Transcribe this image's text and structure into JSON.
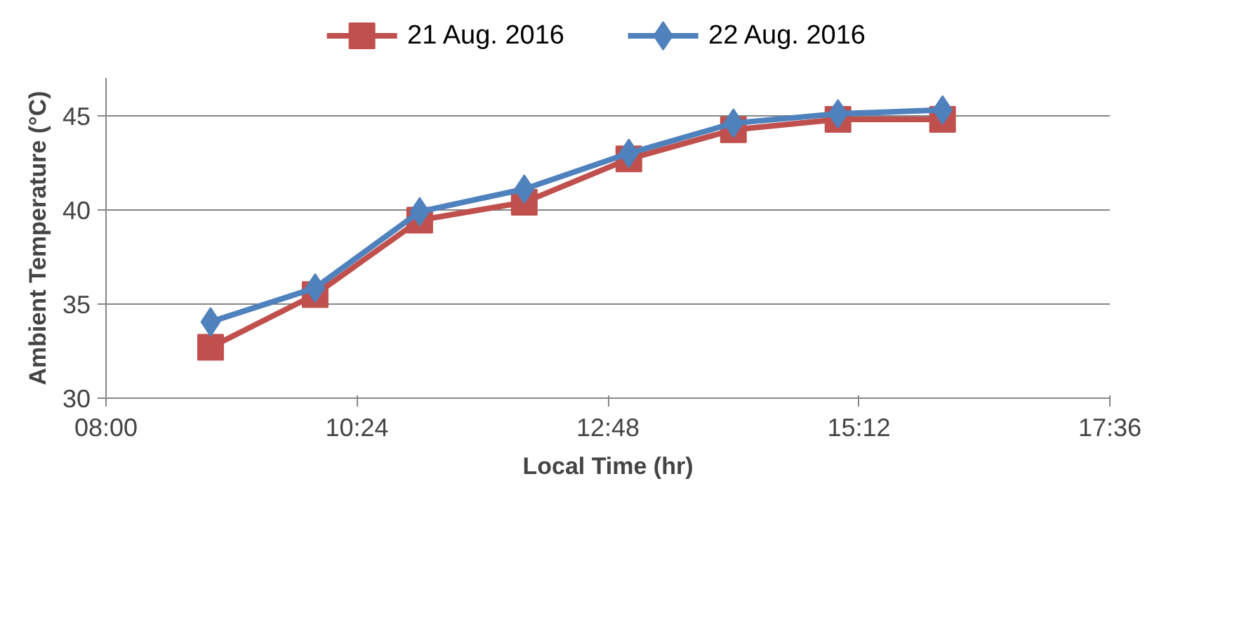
{
  "chart_data": {
    "type": "line",
    "xlabel": "Local Time (hr)",
    "ylabel": "Ambient Temperature (°C)",
    "x": [
      9,
      10,
      11,
      12,
      13,
      14,
      15,
      16
    ],
    "series": [
      {
        "name": "21 Aug. 2016",
        "color": "#c0504d",
        "marker": "square",
        "values": [
          32.7,
          35.5,
          39.45,
          40.4,
          42.7,
          44.25,
          44.8,
          44.8
        ]
      },
      {
        "name": "22 Aug. 2016",
        "color": "#4f81bd",
        "marker": "diamond",
        "values": [
          34.05,
          35.85,
          39.9,
          41.1,
          43.0,
          44.6,
          45.1,
          45.3
        ]
      }
    ],
    "xlim": [
      8,
      17.6
    ],
    "xticks": [
      {
        "value": 8,
        "label": "08:00"
      },
      {
        "value": 10.4,
        "label": "10:24"
      },
      {
        "value": 12.8,
        "label": "12:48"
      },
      {
        "value": 15.2,
        "label": "15:12"
      },
      {
        "value": 17.6,
        "label": "17:36"
      }
    ],
    "ylim": [
      30,
      47
    ],
    "yticks": [
      30,
      35,
      40,
      45
    ],
    "grid": "y",
    "legend": "top",
    "line_style": "solid"
  }
}
